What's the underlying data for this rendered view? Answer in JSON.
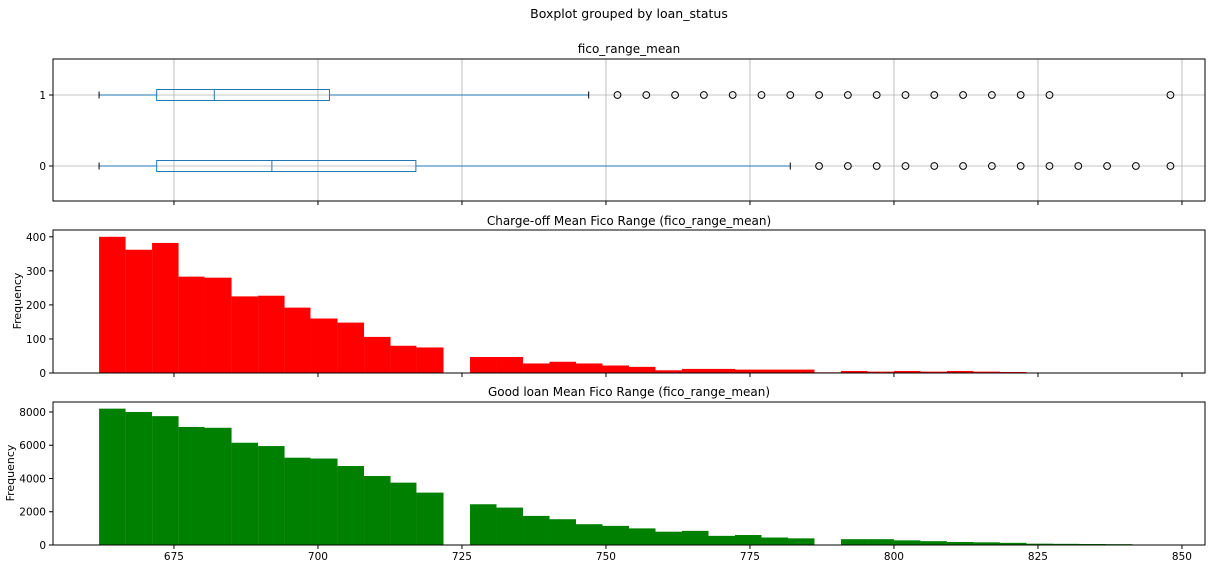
{
  "suptitle": "Boxplot grouped by loan_status",
  "x_tick_labels": [
    "675",
    "700",
    "725",
    "750",
    "775",
    "800",
    "825",
    "850"
  ],
  "x_ticks": [
    675,
    700,
    725,
    750,
    775,
    800,
    825,
    850
  ],
  "xlim": [
    654,
    854
  ],
  "colors": {
    "box": "#1f77b4",
    "chargeoff": "#ff0000",
    "good": "#008000",
    "grid": "#b0b0b0"
  },
  "chart_data": [
    {
      "type": "boxplot",
      "title": "fico_range_mean",
      "orientation": "horizontal",
      "categories": [
        "1",
        "0"
      ],
      "boxes": [
        {
          "label": "1",
          "whisker_low": 662,
          "q1": 672,
          "median": 682,
          "q3": 702,
          "whisker_high": 747,
          "outliers": [
            752,
            757,
            762,
            767,
            772,
            777,
            782,
            787,
            792,
            797,
            802,
            807,
            812,
            817,
            822,
            827,
            848
          ]
        },
        {
          "label": "0",
          "whisker_low": 662,
          "q1": 672,
          "median": 692,
          "q3": 717,
          "whisker_high": 782,
          "outliers": [
            787,
            792,
            797,
            802,
            807,
            812,
            817,
            822,
            827,
            832,
            837,
            842,
            848
          ]
        }
      ],
      "grid": true
    },
    {
      "type": "bar",
      "title": "Charge-off Mean Fico Range (fico_range_mean)",
      "ylabel": "Frequency",
      "ylim": [
        0,
        420
      ],
      "y_ticks": [
        0,
        100,
        200,
        300,
        400
      ],
      "y_tick_labels": [
        "0",
        "100",
        "200",
        "300",
        "400"
      ],
      "color": "#ff0000",
      "bins": [
        {
          "x0": 662.0,
          "x1": 666.6,
          "value": 400
        },
        {
          "x0": 666.6,
          "x1": 671.2,
          "value": 362
        },
        {
          "x0": 671.2,
          "x1": 675.8,
          "value": 382
        },
        {
          "x0": 675.8,
          "x1": 680.3,
          "value": 283
        },
        {
          "x0": 680.3,
          "x1": 685.0,
          "value": 280
        },
        {
          "x0": 685.0,
          "x1": 689.6,
          "value": 225
        },
        {
          "x0": 689.6,
          "x1": 694.2,
          "value": 227
        },
        {
          "x0": 694.2,
          "x1": 698.7,
          "value": 192
        },
        {
          "x0": 698.7,
          "x1": 703.4,
          "value": 160
        },
        {
          "x0": 703.4,
          "x1": 708.0,
          "value": 148
        },
        {
          "x0": 708.0,
          "x1": 712.6,
          "value": 106
        },
        {
          "x0": 712.6,
          "x1": 717.1,
          "value": 80
        },
        {
          "x0": 717.1,
          "x1": 721.8,
          "value": 75
        },
        {
          "x0": 726.4,
          "x1": 731.0,
          "value": 47
        },
        {
          "x0": 731.0,
          "x1": 735.6,
          "value": 47
        },
        {
          "x0": 735.6,
          "x1": 740.2,
          "value": 28
        },
        {
          "x0": 740.2,
          "x1": 744.8,
          "value": 33
        },
        {
          "x0": 744.8,
          "x1": 749.4,
          "value": 28
        },
        {
          "x0": 749.4,
          "x1": 754.0,
          "value": 22
        },
        {
          "x0": 754.0,
          "x1": 758.6,
          "value": 18
        },
        {
          "x0": 758.6,
          "x1": 763.2,
          "value": 8
        },
        {
          "x0": 763.2,
          "x1": 767.8,
          "value": 12
        },
        {
          "x0": 767.8,
          "x1": 772.4,
          "value": 12
        },
        {
          "x0": 772.4,
          "x1": 777.0,
          "value": 10
        },
        {
          "x0": 777.0,
          "x1": 781.6,
          "value": 10
        },
        {
          "x0": 781.6,
          "x1": 786.2,
          "value": 10
        },
        {
          "x0": 786.2,
          "x1": 790.8,
          "value": 2
        },
        {
          "x0": 790.8,
          "x1": 795.4,
          "value": 6
        },
        {
          "x0": 795.4,
          "x1": 800.0,
          "value": 4
        },
        {
          "x0": 800.0,
          "x1": 804.6,
          "value": 6
        },
        {
          "x0": 804.6,
          "x1": 809.2,
          "value": 4
        },
        {
          "x0": 809.2,
          "x1": 813.8,
          "value": 6
        },
        {
          "x0": 813.8,
          "x1": 818.4,
          "value": 4
        },
        {
          "x0": 818.4,
          "x1": 823.0,
          "value": 3
        },
        {
          "x0": 823.0,
          "x1": 827.6,
          "value": 1
        },
        {
          "x0": 827.6,
          "x1": 832.2,
          "value": 1
        },
        {
          "x0": 832.2,
          "x1": 836.8,
          "value": 1
        },
        {
          "x0": 836.8,
          "x1": 841.4,
          "value": 1
        },
        {
          "x0": 841.4,
          "x1": 846.0,
          "value": 1
        },
        {
          "x0": 846.0,
          "x1": 849.0,
          "value": 1
        }
      ]
    },
    {
      "type": "bar",
      "title": "Good loan Mean Fico Range (fico_range_mean)",
      "ylabel": "Frequency",
      "ylim": [
        0,
        8600
      ],
      "y_ticks": [
        0,
        2000,
        4000,
        6000,
        8000
      ],
      "y_tick_labels": [
        "0",
        "2000",
        "4000",
        "6000",
        "8000"
      ],
      "color": "#008000",
      "bins": [
        {
          "x0": 662.0,
          "x1": 666.6,
          "value": 8200
        },
        {
          "x0": 666.6,
          "x1": 671.2,
          "value": 8000
        },
        {
          "x0": 671.2,
          "x1": 675.8,
          "value": 7750
        },
        {
          "x0": 675.8,
          "x1": 680.3,
          "value": 7100
        },
        {
          "x0": 680.3,
          "x1": 685.0,
          "value": 7050
        },
        {
          "x0": 685.0,
          "x1": 689.6,
          "value": 6150
        },
        {
          "x0": 689.6,
          "x1": 694.2,
          "value": 5950
        },
        {
          "x0": 694.2,
          "x1": 698.7,
          "value": 5250
        },
        {
          "x0": 698.7,
          "x1": 703.4,
          "value": 5200
        },
        {
          "x0": 703.4,
          "x1": 708.0,
          "value": 4750
        },
        {
          "x0": 708.0,
          "x1": 712.6,
          "value": 4150
        },
        {
          "x0": 712.6,
          "x1": 717.1,
          "value": 3750
        },
        {
          "x0": 717.1,
          "x1": 721.8,
          "value": 3150
        },
        {
          "x0": 726.4,
          "x1": 731.0,
          "value": 2450
        },
        {
          "x0": 731.0,
          "x1": 735.6,
          "value": 2250
        },
        {
          "x0": 735.6,
          "x1": 740.2,
          "value": 1750
        },
        {
          "x0": 740.2,
          "x1": 744.8,
          "value": 1550
        },
        {
          "x0": 744.8,
          "x1": 749.4,
          "value": 1250
        },
        {
          "x0": 749.4,
          "x1": 754.0,
          "value": 1150
        },
        {
          "x0": 754.0,
          "x1": 758.6,
          "value": 1000
        },
        {
          "x0": 758.6,
          "x1": 763.2,
          "value": 800
        },
        {
          "x0": 763.2,
          "x1": 767.8,
          "value": 850
        },
        {
          "x0": 767.8,
          "x1": 772.4,
          "value": 550
        },
        {
          "x0": 772.4,
          "x1": 777.0,
          "value": 600
        },
        {
          "x0": 777.0,
          "x1": 781.6,
          "value": 450
        },
        {
          "x0": 781.6,
          "x1": 786.2,
          "value": 400
        },
        {
          "x0": 786.2,
          "x1": 790.8,
          "value": 20
        },
        {
          "x0": 790.8,
          "x1": 795.4,
          "value": 350
        },
        {
          "x0": 795.4,
          "x1": 800.0,
          "value": 350
        },
        {
          "x0": 800.0,
          "x1": 804.6,
          "value": 280
        },
        {
          "x0": 804.6,
          "x1": 809.2,
          "value": 230
        },
        {
          "x0": 809.2,
          "x1": 813.8,
          "value": 180
        },
        {
          "x0": 813.8,
          "x1": 818.4,
          "value": 160
        },
        {
          "x0": 818.4,
          "x1": 823.0,
          "value": 130
        },
        {
          "x0": 823.0,
          "x1": 827.6,
          "value": 80
        },
        {
          "x0": 827.6,
          "x1": 832.2,
          "value": 70
        },
        {
          "x0": 832.2,
          "x1": 836.8,
          "value": 60
        },
        {
          "x0": 836.8,
          "x1": 841.4,
          "value": 50
        },
        {
          "x0": 841.4,
          "x1": 846.0,
          "value": 30
        },
        {
          "x0": 846.0,
          "x1": 849.0,
          "value": 20
        }
      ]
    }
  ]
}
